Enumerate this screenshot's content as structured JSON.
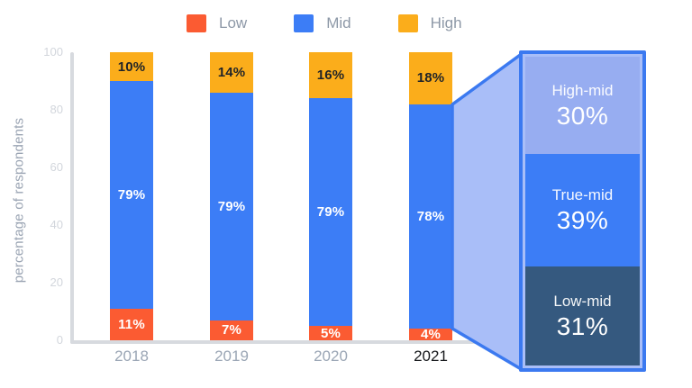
{
  "legend": {
    "items": [
      {
        "label": "Low",
        "color": "#fb5b32"
      },
      {
        "label": "Mid",
        "color": "#3c7df6"
      },
      {
        "label": "High",
        "color": "#fbad1b"
      }
    ]
  },
  "y_axis": {
    "title": "percentage of respondents",
    "ticks": [
      0,
      20,
      40,
      60,
      80,
      100
    ]
  },
  "chart_data": {
    "type": "bar",
    "stacked": true,
    "title": "",
    "xlabel": "",
    "ylabel": "percentage of respondents",
    "ylim": [
      0,
      100
    ],
    "grid": false,
    "legend_position": "top",
    "categories": [
      "2018",
      "2019",
      "2020",
      "2021"
    ],
    "series": [
      {
        "name": "Low",
        "color": "#fb5b32",
        "label_color": "#ffffff",
        "values": [
          11,
          7,
          5,
          4
        ]
      },
      {
        "name": "Mid",
        "color": "#3c7df6",
        "label_color": "#ffffff",
        "values": [
          79,
          79,
          79,
          78
        ]
      },
      {
        "name": "High",
        "color": "#fbad1b",
        "label_color": "#1f2328",
        "values": [
          10,
          14,
          16,
          18
        ]
      }
    ],
    "highlight_category": "2021",
    "breakout": {
      "source_category": "2021",
      "source_series": "Mid",
      "segments": [
        {
          "label": "High-mid",
          "value": 30,
          "value_label": "30%",
          "color": "#97adf1"
        },
        {
          "label": "True-mid",
          "value": 39,
          "value_label": "39%",
          "color": "#3c7df6"
        },
        {
          "label": "Low-mid",
          "value": 31,
          "value_label": "31%",
          "color": "#35597f"
        }
      ]
    },
    "colors": {
      "funnel_fill": "#a9bef8",
      "outline_blue": "#3b79f0",
      "axis_line": "#d7dadf",
      "tick_text": "#d2d6dc",
      "axis_title_text": "#9aa4b3",
      "year_text": "#9ba6b5",
      "year_highlight_text": "#17191c"
    }
  }
}
